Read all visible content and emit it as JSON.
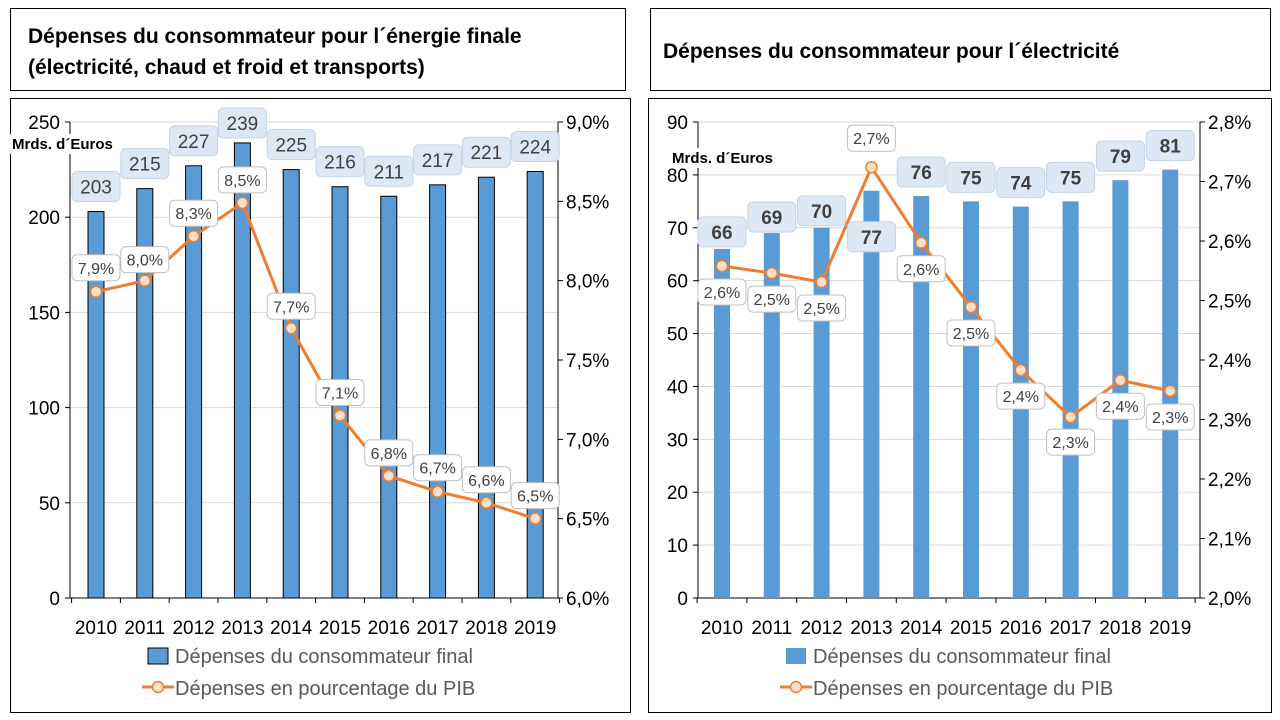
{
  "chart_data": [
    {
      "type": "bar+line",
      "title": "Dépenses du consommateur pour l´énergie finale (électricité, chaud et froid et transports)",
      "title_lines": [
        "Dépenses du consommateur pour l´énergie finale",
        "(électricité, chaud et froid et transports)"
      ],
      "ylabel": "Mrds. d´Euros",
      "categories": [
        "2010",
        "2011",
        "2012",
        "2013",
        "2014",
        "2015",
        "2016",
        "2017",
        "2018",
        "2019"
      ],
      "ylim": [
        0,
        250
      ],
      "y_ticks": [
        "0",
        "50",
        "100",
        "150",
        "200",
        "250"
      ],
      "y2lim": [
        6.0,
        9.0
      ],
      "y2_ticks": [
        "6,0%",
        "6,5%",
        "7,0%",
        "7,5%",
        "8,0%",
        "8,5%",
        "9,0%"
      ],
      "grid": true,
      "legend_position": "bottom",
      "series": [
        {
          "name": "Dépenses du consommateur final",
          "type": "bar",
          "axis": "left",
          "color": "#5B9BD5",
          "values": [
            203,
            215,
            227,
            239,
            225,
            216,
            211,
            217,
            221,
            224
          ],
          "labels": [
            "203",
            "215",
            "227",
            "239",
            "225",
            "216",
            "211",
            "217",
            "221",
            "224"
          ]
        },
        {
          "name": "Dépenses en pourcentage du PIB",
          "type": "line",
          "axis": "right",
          "color": "#ED7D31",
          "values": [
            7.93,
            8.0,
            8.28,
            8.49,
            7.7,
            7.15,
            6.77,
            6.67,
            6.6,
            6.5
          ],
          "labels": [
            "7,9%",
            "8,0%",
            "8,3%",
            "8,5%",
            "7,7%",
            "7,1%",
            "6,8%",
            "6,7%",
            "6,6%",
            "6,5%"
          ]
        }
      ]
    },
    {
      "type": "bar+line",
      "title": "Dépenses du consommateur pour l´électricité",
      "title_lines": [
        "Dépenses du consommateur pour l´électricité"
      ],
      "ylabel": "Mrds. d´Euros",
      "categories": [
        "2010",
        "2011",
        "2012",
        "2013",
        "2014",
        "2015",
        "2016",
        "2017",
        "2018",
        "2019"
      ],
      "ylim": [
        0,
        90
      ],
      "y_ticks": [
        "0",
        "10",
        "20",
        "30",
        "40",
        "50",
        "60",
        "70",
        "80",
        "90"
      ],
      "y2lim": [
        2.0,
        2.8
      ],
      "y2_ticks": [
        "2,0%",
        "2,1%",
        "2,2%",
        "2,3%",
        "2,4%",
        "2,5%",
        "2,6%",
        "2,7%",
        "2,8%"
      ],
      "grid": true,
      "legend_position": "bottom",
      "series": [
        {
          "name": "Dépenses du consommateur final",
          "type": "bar",
          "axis": "left",
          "color": "#5B9BD5",
          "values": [
            66,
            69,
            70,
            77,
            76,
            75,
            74,
            75,
            79,
            81
          ],
          "labels": [
            "66",
            "69",
            "70",
            "77",
            "76",
            "75",
            "74",
            "75",
            "79",
            "81"
          ]
        },
        {
          "name": "Dépenses en pourcentage du PIB",
          "type": "line",
          "axis": "right",
          "color": "#ED7D31",
          "values": [
            2.558,
            2.546,
            2.531,
            2.724,
            2.597,
            2.489,
            2.383,
            2.304,
            2.366,
            2.348
          ],
          "labels": [
            "2,6%",
            "2,5%",
            "2,5%",
            "2,7%",
            "2,6%",
            "2,5%",
            "2,4%",
            "2,3%",
            "2,4%",
            "2,3%"
          ]
        }
      ]
    }
  ]
}
